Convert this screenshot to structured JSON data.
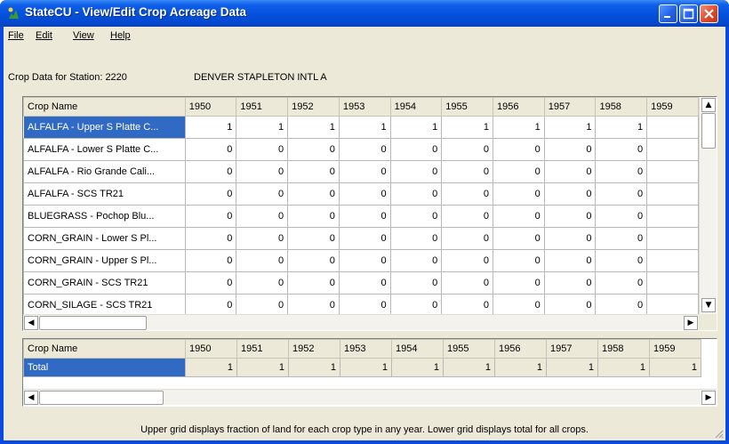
{
  "window": {
    "title": "StateCU - View/Edit Crop Acreage Data"
  },
  "menu": [
    "File",
    "Edit",
    "View",
    "Help"
  ],
  "station": {
    "label": "Crop Data for Station: 2220",
    "name": "DENVER STAPLETON INTL A"
  },
  "upper_grid": {
    "columns": [
      "Crop Name",
      "1950",
      "1951",
      "1952",
      "1953",
      "1954",
      "1955",
      "1956",
      "1957",
      "1958",
      "1959"
    ],
    "rows": [
      {
        "name": "ALFALFA - Upper S Platte C...",
        "values": [
          "1",
          "1",
          "1",
          "1",
          "1",
          "1",
          "1",
          "1",
          "1",
          ""
        ]
      },
      {
        "name": "ALFALFA - Lower S Platte C...",
        "values": [
          "0",
          "0",
          "0",
          "0",
          "0",
          "0",
          "0",
          "0",
          "0",
          ""
        ]
      },
      {
        "name": "ALFALFA - Rio Grande Cali...",
        "values": [
          "0",
          "0",
          "0",
          "0",
          "0",
          "0",
          "0",
          "0",
          "0",
          ""
        ]
      },
      {
        "name": "ALFALFA - SCS TR21",
        "values": [
          "0",
          "0",
          "0",
          "0",
          "0",
          "0",
          "0",
          "0",
          "0",
          ""
        ]
      },
      {
        "name": "BLUEGRASS - Pochop Blu...",
        "values": [
          "0",
          "0",
          "0",
          "0",
          "0",
          "0",
          "0",
          "0",
          "0",
          ""
        ]
      },
      {
        "name": "CORN_GRAIN - Lower S Pl...",
        "values": [
          "0",
          "0",
          "0",
          "0",
          "0",
          "0",
          "0",
          "0",
          "0",
          ""
        ]
      },
      {
        "name": "CORN_GRAIN - Upper S Pl...",
        "values": [
          "0",
          "0",
          "0",
          "0",
          "0",
          "0",
          "0",
          "0",
          "0",
          ""
        ]
      },
      {
        "name": "CORN_GRAIN - SCS TR21",
        "values": [
          "0",
          "0",
          "0",
          "0",
          "0",
          "0",
          "0",
          "0",
          "0",
          ""
        ]
      },
      {
        "name": "CORN_SILAGE - SCS TR21",
        "values": [
          "0",
          "0",
          "0",
          "0",
          "0",
          "0",
          "0",
          "0",
          "0",
          ""
        ]
      }
    ]
  },
  "lower_grid": {
    "columns": [
      "Crop Name",
      "1950",
      "1951",
      "1952",
      "1953",
      "1954",
      "1955",
      "1956",
      "1957",
      "1958",
      "1959"
    ],
    "rows": [
      {
        "name": "Total",
        "values": [
          "1",
          "1",
          "1",
          "1",
          "1",
          "1",
          "1",
          "1",
          "1",
          "1"
        ]
      }
    ]
  },
  "footer": "Upper grid displays fraction of land for each crop type in any year.  Lower grid displays total for all crops.",
  "colors": {
    "title_blue": "#0552de",
    "selection": "#316ac5",
    "face": "#ece9d8"
  }
}
